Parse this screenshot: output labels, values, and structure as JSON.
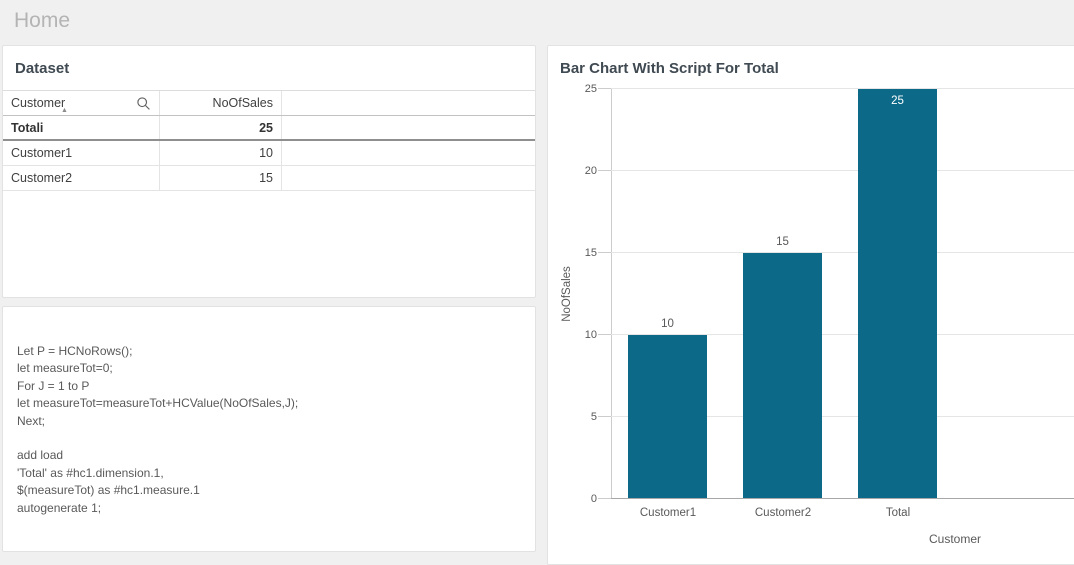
{
  "page": {
    "title": "Home"
  },
  "colors": {
    "bar": "#0c6a88",
    "background": "#f0f0f0",
    "card_border": "#e2e2e2",
    "muted_text": "#595959"
  },
  "dataset_panel": {
    "title": "Dataset",
    "table": {
      "columns": [
        {
          "label": "Customer",
          "sorted": "ascending"
        },
        {
          "label": "NoOfSales"
        },
        {
          "label": ""
        }
      ],
      "rows": [
        {
          "customer": "Totali",
          "value": "25",
          "is_total": true
        },
        {
          "customer": "Customer1",
          "value": "10",
          "is_total": false
        },
        {
          "customer": "Customer2",
          "value": "15",
          "is_total": false
        }
      ]
    }
  },
  "script_panel": {
    "code": "Let P = HCNoRows();\nlet measureTot=0;\nFor J = 1 to P\nlet measureTot=measureTot+HCValue(NoOfSales,J);\nNext;\n\nadd load\n'Total' as #hc1.dimension.1,\n$(measureTot) as #hc1.measure.1\nautogenerate 1;"
  },
  "chart_panel": {
    "title": "Bar Chart With Script For Total"
  },
  "chart_data": {
    "type": "bar",
    "title": "Bar Chart With Script For Total",
    "categories": [
      "Customer1",
      "Customer2",
      "Total"
    ],
    "values": [
      10,
      15,
      25
    ],
    "value_labels": [
      "10",
      "15",
      "25"
    ],
    "xlabel": "Customer",
    "ylabel": "NoOfSales",
    "ylim": [
      0,
      25
    ],
    "yticks": [
      0,
      5,
      10,
      15,
      20,
      25
    ],
    "grid": true,
    "legend": false,
    "bar_color": "#0c6a88"
  }
}
